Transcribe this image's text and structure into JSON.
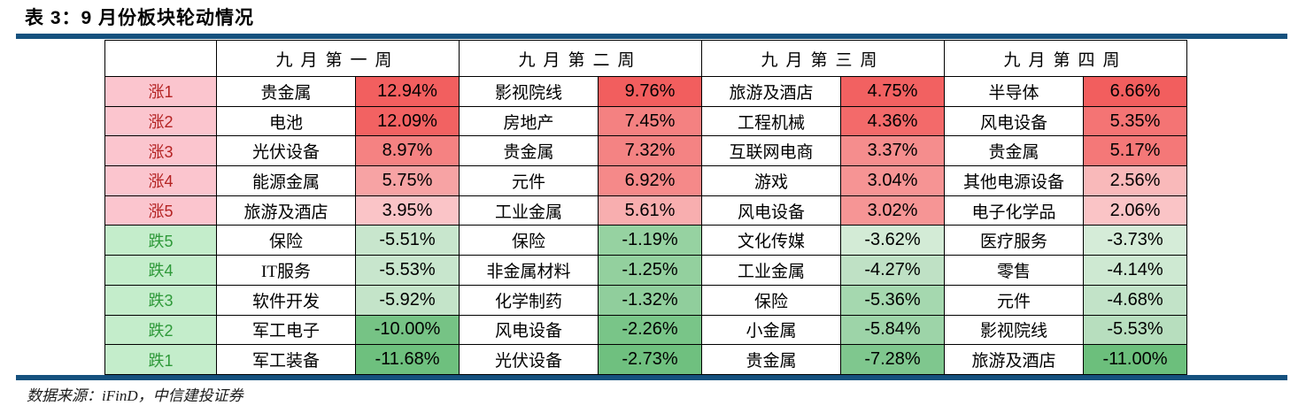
{
  "page": {
    "title": "表 3：9 月份板块轮动情况",
    "source": "数据来源：iFinD，中信建投证券"
  },
  "colors": {
    "rule_navy": "#15517e",
    "label_up_bg": "#fbc5ce",
    "label_up_text": "#b42222",
    "label_down_bg": "#c4edcb",
    "label_down_text": "#2e9939"
  },
  "table": {
    "week_headers": [
      "九月第一周",
      "九月第二周",
      "九月第三周",
      "九月第四周"
    ],
    "rows": [
      {
        "label": "涨1",
        "type": "up",
        "cells": [
          {
            "sector": "贵金属",
            "pct": "12.94%",
            "bg": "#f25f5f"
          },
          {
            "sector": "影视院线",
            "pct": "9.76%",
            "bg": "#f25e5e"
          },
          {
            "sector": "旅游及酒店",
            "pct": "4.75%",
            "bg": "#f26161"
          },
          {
            "sector": "半导体",
            "pct": "6.66%",
            "bg": "#f25e5e"
          }
        ]
      },
      {
        "label": "涨2",
        "type": "up",
        "cells": [
          {
            "sector": "电池",
            "pct": "12.09%",
            "bg": "#f26262"
          },
          {
            "sector": "房地产",
            "pct": "7.45%",
            "bg": "#f48181"
          },
          {
            "sector": "工程机械",
            "pct": "4.36%",
            "bg": "#f36a6a"
          },
          {
            "sector": "风电设备",
            "pct": "5.35%",
            "bg": "#f47474"
          }
        ]
      },
      {
        "label": "涨3",
        "type": "up",
        "cells": [
          {
            "sector": "光伏设备",
            "pct": "8.97%",
            "bg": "#f58282"
          },
          {
            "sector": "贵金属",
            "pct": "7.32%",
            "bg": "#f48383"
          },
          {
            "sector": "互联网电商",
            "pct": "3.37%",
            "bg": "#f58d8d"
          },
          {
            "sector": "贵金属",
            "pct": "5.17%",
            "bg": "#f47878"
          }
        ]
      },
      {
        "label": "涨4",
        "type": "up",
        "cells": [
          {
            "sector": "能源金属",
            "pct": "5.75%",
            "bg": "#f7a3a4"
          },
          {
            "sector": "元件",
            "pct": "6.92%",
            "bg": "#f58989"
          },
          {
            "sector": "游戏",
            "pct": "3.04%",
            "bg": "#f69494"
          },
          {
            "sector": "其他电源设备",
            "pct": "2.56%",
            "bg": "#f9b9ba"
          }
        ]
      },
      {
        "label": "涨5",
        "type": "up",
        "cells": [
          {
            "sector": "旅游及酒店",
            "pct": "3.95%",
            "bg": "#fac4c7"
          },
          {
            "sector": "工业金属",
            "pct": "5.61%",
            "bg": "#f8aeaf"
          },
          {
            "sector": "风电设备",
            "pct": "3.02%",
            "bg": "#f69595"
          },
          {
            "sector": "电子化学品",
            "pct": "2.06%",
            "bg": "#fac4c6"
          }
        ]
      },
      {
        "label": "跌5",
        "type": "down",
        "cells": [
          {
            "sector": "保险",
            "pct": "-5.51%",
            "bg": "#c8e6cd"
          },
          {
            "sector": "保险",
            "pct": "-1.19%",
            "bg": "#96d2a1"
          },
          {
            "sector": "文化传媒",
            "pct": "-3.62%",
            "bg": "#d3ebd6"
          },
          {
            "sector": "医疗服务",
            "pct": "-3.73%",
            "bg": "#d5ecd8"
          }
        ]
      },
      {
        "label": "跌4",
        "type": "down",
        "cells": [
          {
            "sector": "IT服务",
            "pct": "-5.53%",
            "bg": "#c8e6cd"
          },
          {
            "sector": "非金属材料",
            "pct": "-1.25%",
            "bg": "#93d09e"
          },
          {
            "sector": "工业金属",
            "pct": "-4.27%",
            "bg": "#bfe1c5"
          },
          {
            "sector": "零售",
            "pct": "-4.14%",
            "bg": "#cee9d2"
          }
        ]
      },
      {
        "label": "跌3",
        "type": "down",
        "cells": [
          {
            "sector": "软件开发",
            "pct": "-5.92%",
            "bg": "#c4e4c9"
          },
          {
            "sector": "化学制药",
            "pct": "-1.32%",
            "bg": "#90ce9c"
          },
          {
            "sector": "保险",
            "pct": "-5.36%",
            "bg": "#a5d8af"
          },
          {
            "sector": "元件",
            "pct": "-4.68%",
            "bg": "#c2e3c8"
          }
        ]
      },
      {
        "label": "跌2",
        "type": "down",
        "cells": [
          {
            "sector": "军工电子",
            "pct": "-10.00%",
            "bg": "#76c385"
          },
          {
            "sector": "风电设备",
            "pct": "-2.26%",
            "bg": "#79c588"
          },
          {
            "sector": "小金属",
            "pct": "-5.84%",
            "bg": "#9dd4a8"
          },
          {
            "sector": "影视院线",
            "pct": "-5.53%",
            "bg": "#b7debe"
          }
        ]
      },
      {
        "label": "跌1",
        "type": "down",
        "cells": [
          {
            "sector": "军工装备",
            "pct": "-11.68%",
            "bg": "#6ec07e"
          },
          {
            "sector": "光伏设备",
            "pct": "-2.73%",
            "bg": "#6fc07f"
          },
          {
            "sector": "贵金属",
            "pct": "-7.28%",
            "bg": "#7fc78e"
          },
          {
            "sector": "旅游及酒店",
            "pct": "-11.00%",
            "bg": "#6cbf7c"
          }
        ]
      }
    ]
  }
}
